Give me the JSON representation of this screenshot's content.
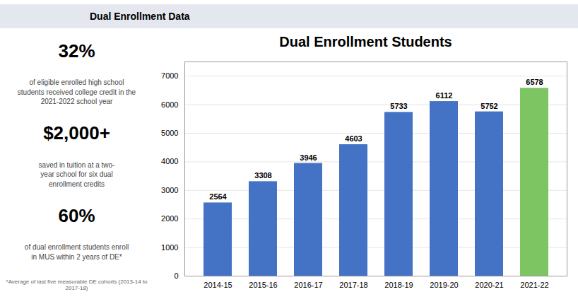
{
  "chart_data": {
    "type": "bar",
    "title": "Dual Enrollment Students",
    "annotations": [
      "Dual Enrollment Data",
      "32%",
      "of eligible enrolled high school\nstudents received college credit in the\n2021-2022 school year",
      "$2,000+",
      "saved in tuition at a two-\nyear school for six dual\nenrollment credits",
      "60%",
      "of dual enrollment students enroll\nin MUS within 2 years of DE*",
      "*Average of last five measurable DE cohorts (2013-14 to 2017-18)"
    ],
    "categories": [
      "2014-15",
      "2015-16",
      "2016-17",
      "2017-18",
      "2018-19",
      "2019-20",
      "2020-21",
      "2021-22"
    ],
    "values": [
      2564,
      3308,
      3946,
      4603,
      5733,
      6112,
      5752,
      6578
    ],
    "colors": [
      "#4472C4",
      "#4472C4",
      "#4472C4",
      "#4472C4",
      "#4472C4",
      "#4472C4",
      "#4472C4",
      "#7DC463"
    ],
    "ylim": [
      0,
      7500
    ],
    "yticks": [
      0,
      1000,
      2000,
      3000,
      4000,
      5000,
      6000,
      7000
    ],
    "grid": true,
    "data_labels": true
  }
}
